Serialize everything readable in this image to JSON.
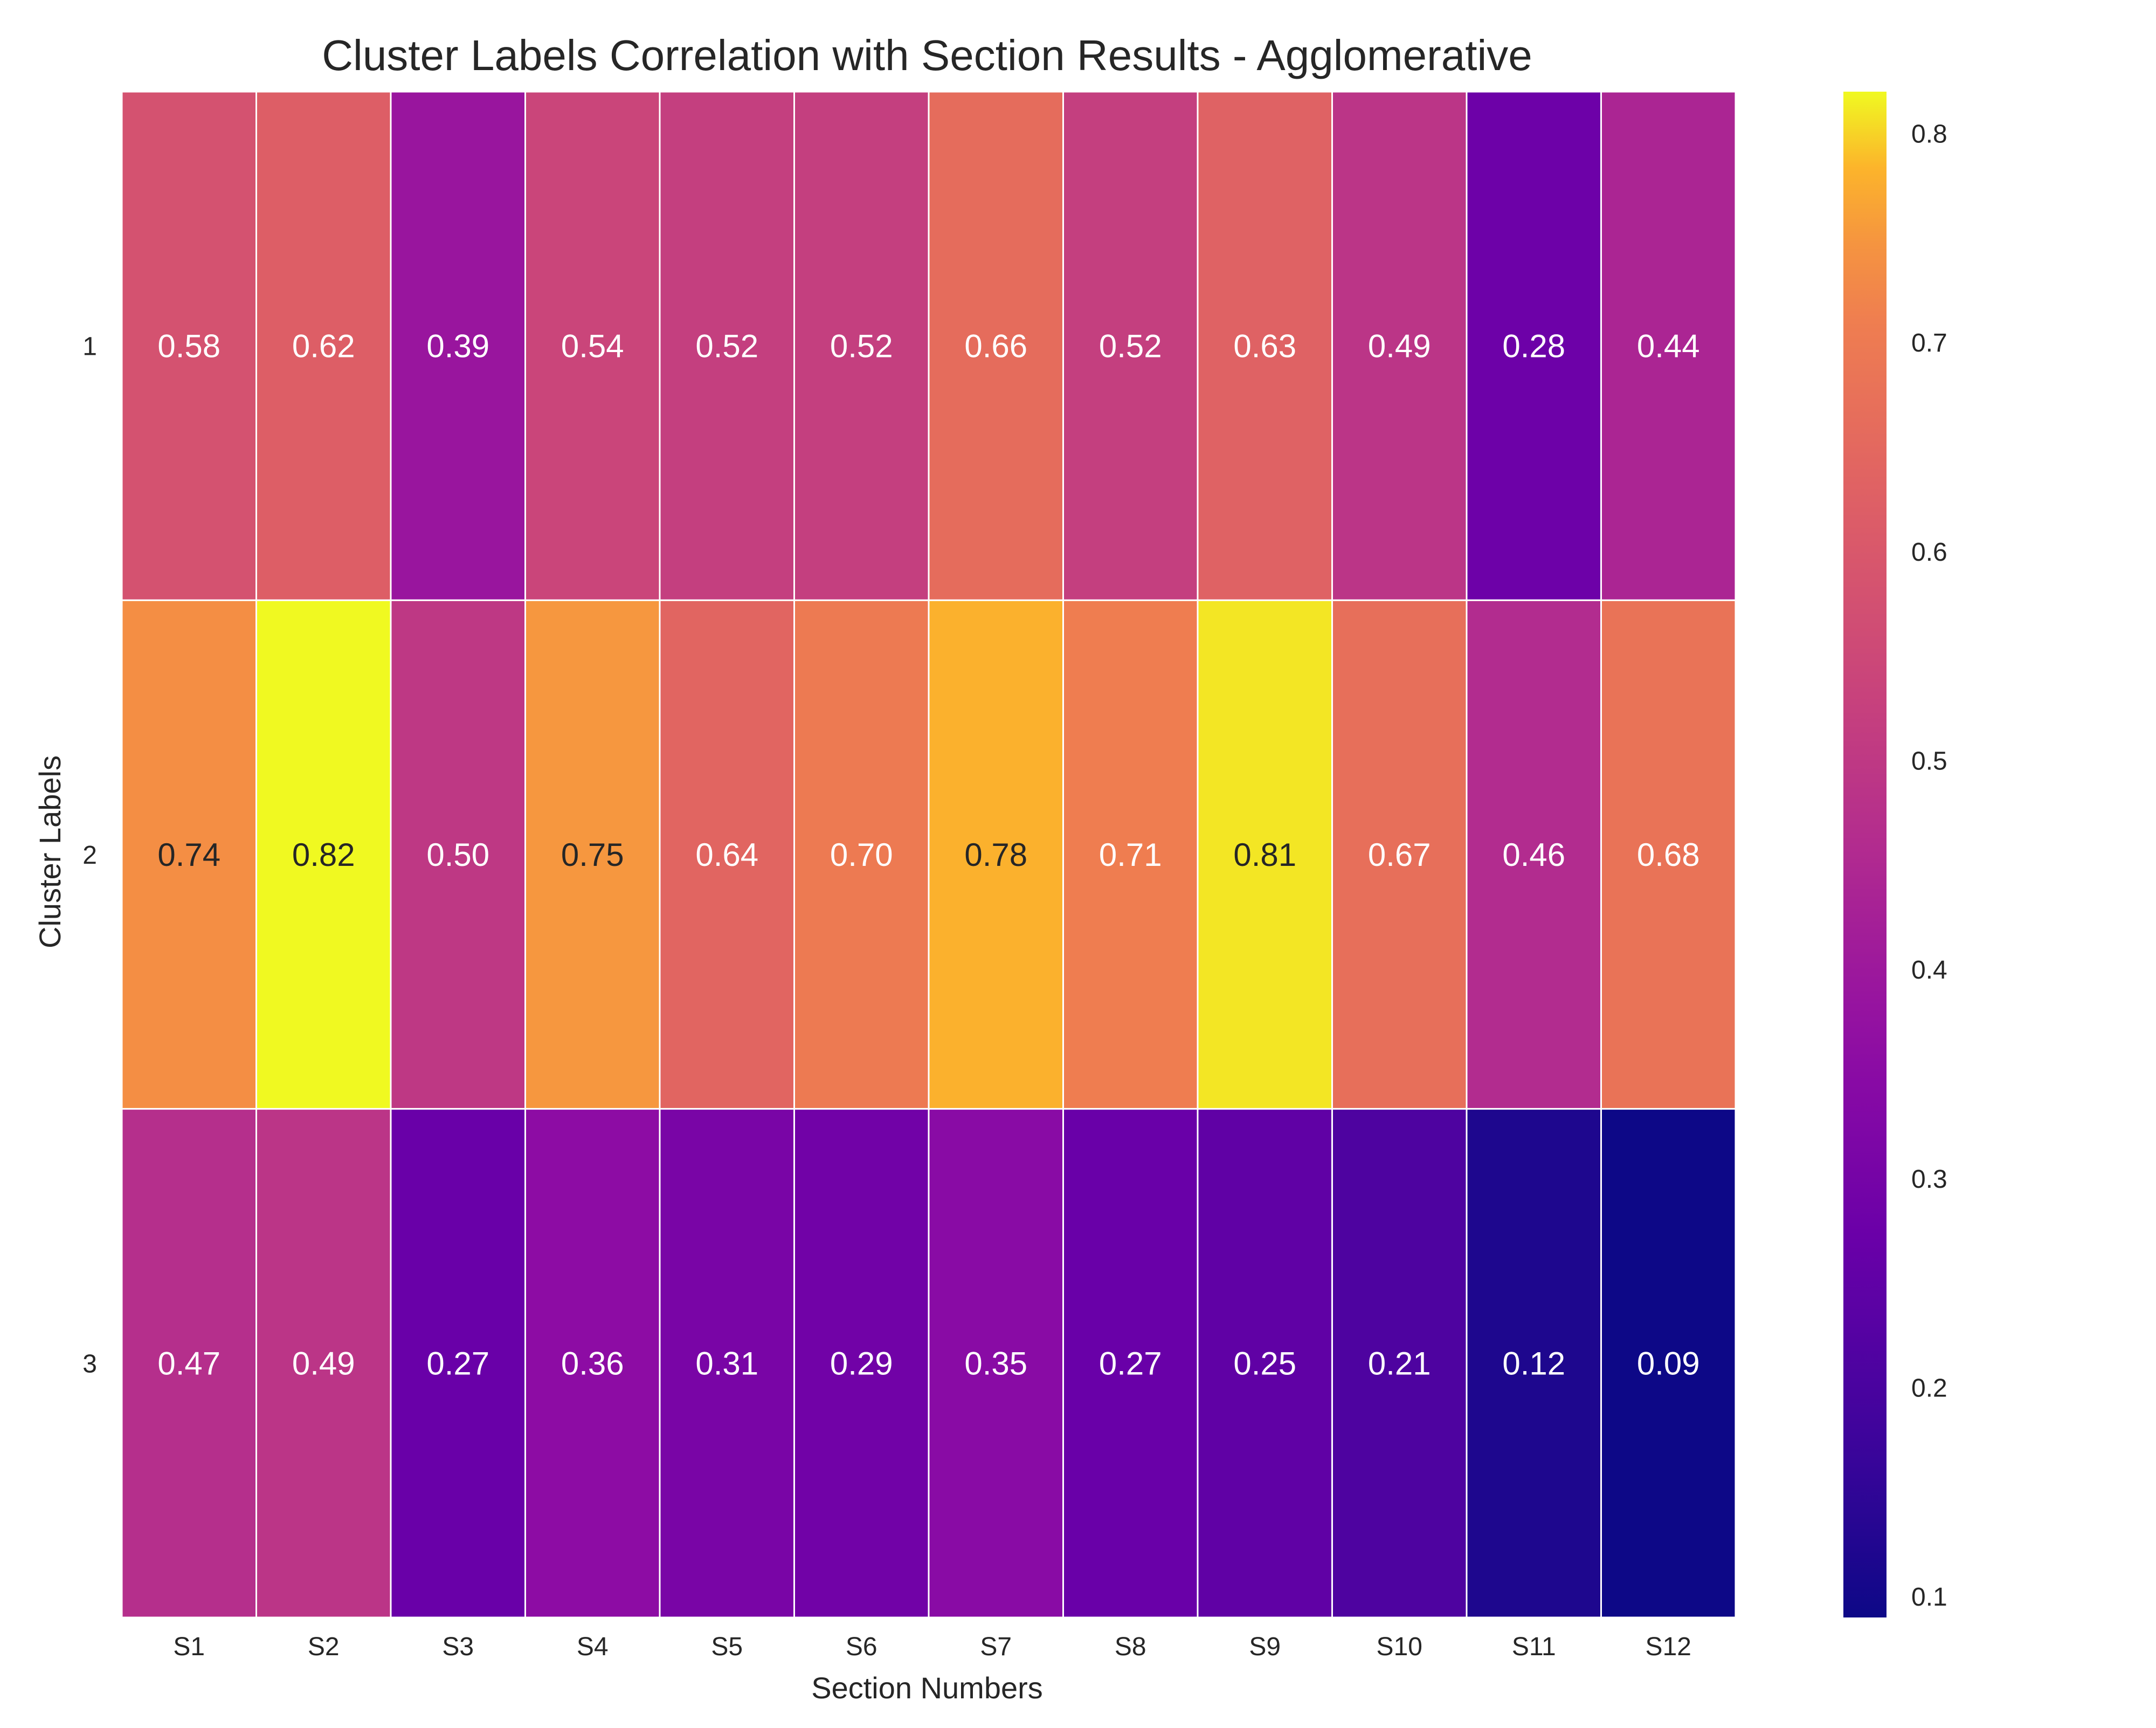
{
  "chart_data": {
    "type": "heatmap",
    "title": "Cluster Labels Correlation with Section Results - Agglomerative",
    "xlabel": "Section Numbers",
    "ylabel": "Cluster Labels",
    "x_categories": [
      "S1",
      "S2",
      "S3",
      "S4",
      "S5",
      "S6",
      "S7",
      "S8",
      "S9",
      "S10",
      "S11",
      "S12"
    ],
    "y_categories": [
      "1",
      "2",
      "3"
    ],
    "values": [
      [
        0.58,
        0.62,
        0.39,
        0.54,
        0.52,
        0.52,
        0.66,
        0.52,
        0.63,
        0.49,
        0.28,
        0.44
      ],
      [
        0.74,
        0.82,
        0.5,
        0.75,
        0.64,
        0.7,
        0.78,
        0.71,
        0.81,
        0.67,
        0.46,
        0.68
      ],
      [
        0.47,
        0.49,
        0.27,
        0.36,
        0.31,
        0.29,
        0.35,
        0.27,
        0.25,
        0.21,
        0.12,
        0.09
      ]
    ],
    "value_format": "0.00",
    "colormap": "plasma",
    "vmin": 0.09,
    "vmax": 0.82,
    "colorbar_ticks": [
      0.1,
      0.2,
      0.3,
      0.4,
      0.5,
      0.6,
      0.7,
      0.8
    ],
    "colorbar_tick_labels": [
      "0.1",
      "0.2",
      "0.3",
      "0.4",
      "0.5",
      "0.6",
      "0.7",
      "0.8"
    ],
    "grid_line_color": "#ffffff",
    "text_dark_color": "#262626",
    "text_light_color": "#ffffff",
    "colorbar_placement": "right"
  }
}
